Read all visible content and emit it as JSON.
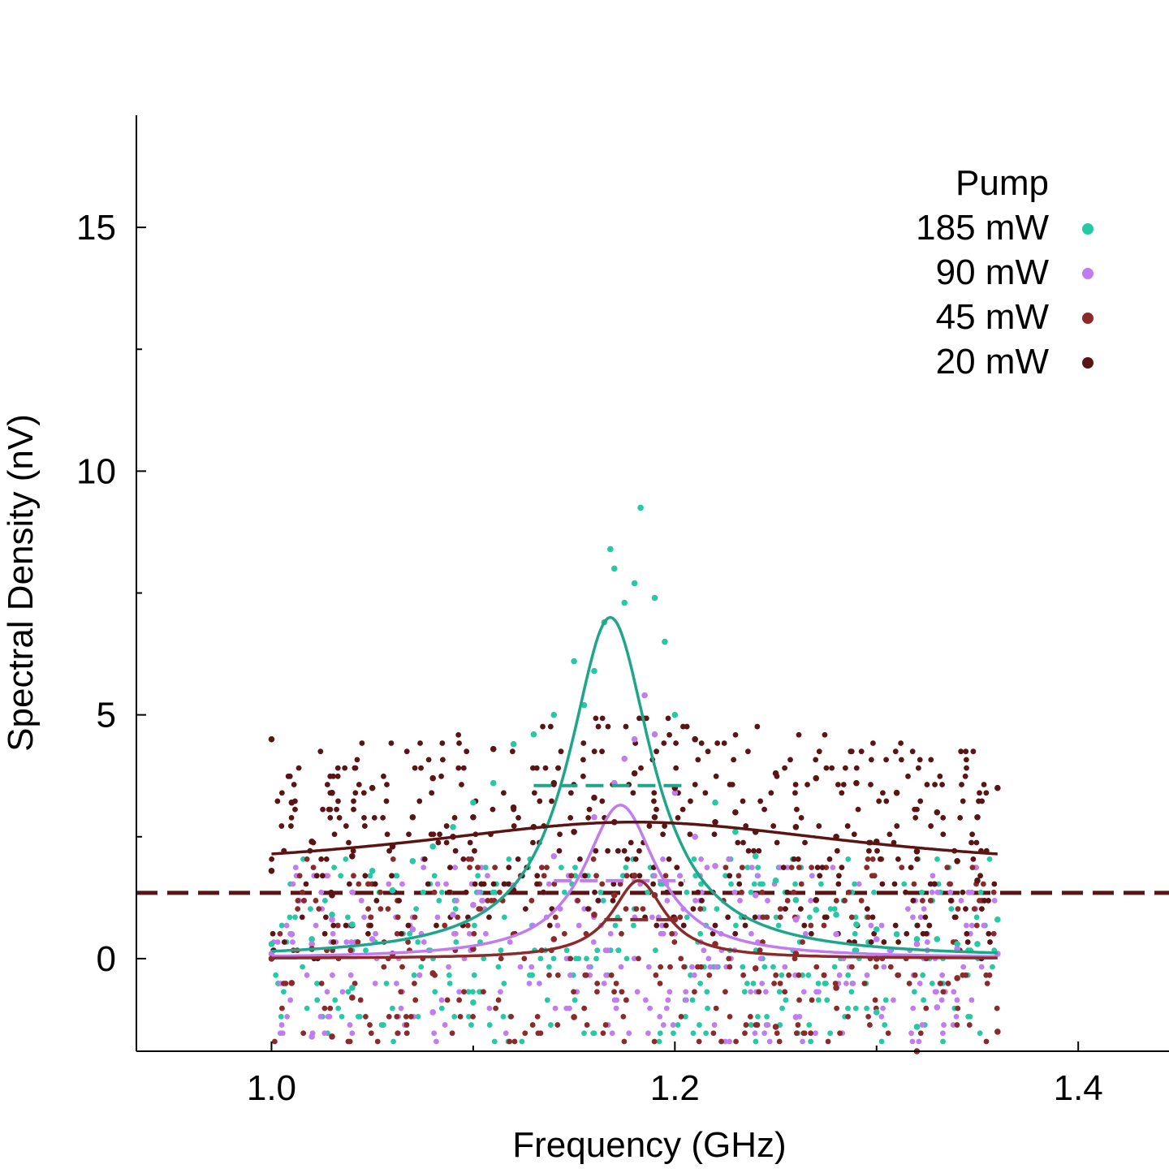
{
  "chart_data": {
    "type": "scatter",
    "xlabel": "Frequency (GHz)",
    "ylabel": "Spectral Density (nV)",
    "xlim": [
      0.933,
      1.445
    ],
    "ylim": [
      -1.9,
      17.3
    ],
    "x_ticks": [
      1.0,
      1.2,
      1.4
    ],
    "x_tick_labels": [
      "1.0",
      "1.2",
      "1.4"
    ],
    "x_minor_ticks": [
      1.1,
      1.3
    ],
    "y_ticks": [
      0,
      5,
      10,
      15
    ],
    "y_tick_labels": [
      "0",
      "5",
      "10",
      "15"
    ],
    "y_minor_ticks": [
      2.5,
      7.5,
      12.5
    ],
    "grid": false,
    "legend": {
      "title": "Pump",
      "position": "top-right"
    },
    "baseline": {
      "y": 1.35,
      "style": "dashed",
      "color": "#5a1414"
    },
    "series": [
      {
        "name": "185 mW",
        "color": "#1fa58a",
        "marker_color": "#25c9a4",
        "points": [
          [
            1.0,
            0.3
          ],
          [
            1.01,
            0.5
          ],
          [
            1.02,
            0.4
          ],
          [
            1.03,
            0.9
          ],
          [
            1.04,
            0.7
          ],
          [
            1.05,
            1.8
          ],
          [
            1.06,
            1.4
          ],
          [
            1.07,
            2.0
          ],
          [
            1.08,
            2.3
          ],
          [
            1.09,
            2.7
          ],
          [
            1.1,
            3.2
          ],
          [
            1.11,
            3.6
          ],
          [
            1.12,
            4.4
          ],
          [
            1.13,
            4.6
          ],
          [
            1.14,
            5.0
          ],
          [
            1.15,
            6.1
          ],
          [
            1.155,
            5.2
          ],
          [
            1.16,
            5.9
          ],
          [
            1.165,
            6.9
          ],
          [
            1.168,
            8.4
          ],
          [
            1.17,
            8.0
          ],
          [
            1.175,
            7.3
          ],
          [
            1.18,
            7.7
          ],
          [
            1.183,
            9.25
          ],
          [
            1.19,
            7.4
          ],
          [
            1.195,
            6.5
          ],
          [
            1.2,
            5.0
          ],
          [
            1.21,
            4.5
          ],
          [
            1.22,
            3.2
          ],
          [
            1.23,
            2.6
          ],
          [
            1.24,
            2.1
          ],
          [
            1.25,
            1.6
          ],
          [
            1.26,
            1.2
          ],
          [
            1.27,
            1.0
          ],
          [
            1.28,
            0.9
          ],
          [
            1.29,
            0.7
          ],
          [
            1.3,
            0.6
          ],
          [
            1.31,
            0.5
          ],
          [
            1.32,
            0.4
          ],
          [
            1.33,
            0.4
          ],
          [
            1.34,
            0.3
          ],
          [
            1.35,
            0.3
          ],
          [
            1.36,
            0.8
          ],
          [
            1.04,
            -0.6
          ],
          [
            1.1,
            -0.9
          ],
          [
            1.3,
            -1.1
          ],
          [
            1.32,
            -1.4
          ]
        ],
        "fit": {
          "center": 1.168,
          "amplitude": 7.0,
          "hwhm": 0.025,
          "offset": 0.0,
          "plateau_y": 3.55,
          "plateau_x": [
            1.13,
            1.205
          ]
        }
      },
      {
        "name": "90 mW",
        "color": "#c17cf0",
        "marker_color": "#c17cf0",
        "points": [
          [
            1.0,
            0.1
          ],
          [
            1.01,
            0.5
          ],
          [
            1.02,
            0.3
          ],
          [
            1.03,
            0.8
          ],
          [
            1.05,
            0.4
          ],
          [
            1.07,
            0.6
          ],
          [
            1.09,
            0.9
          ],
          [
            1.1,
            1.1
          ],
          [
            1.12,
            1.5
          ],
          [
            1.14,
            2.1
          ],
          [
            1.16,
            2.9
          ],
          [
            1.17,
            3.6
          ],
          [
            1.175,
            4.1
          ],
          [
            1.18,
            4.5
          ],
          [
            1.185,
            5.4
          ],
          [
            1.19,
            4.6
          ],
          [
            1.2,
            3.4
          ],
          [
            1.21,
            2.5
          ],
          [
            1.22,
            1.9
          ],
          [
            1.24,
            1.3
          ],
          [
            1.26,
            0.8
          ],
          [
            1.28,
            0.5
          ],
          [
            1.3,
            0.4
          ],
          [
            1.32,
            0.3
          ],
          [
            1.34,
            0.2
          ],
          [
            1.36,
            0.1
          ],
          [
            1.02,
            -1.6
          ],
          [
            1.08,
            -1.1
          ],
          [
            1.26,
            -1.2
          ],
          [
            1.33,
            -1.0
          ]
        ],
        "fit": {
          "center": 1.173,
          "amplitude": 3.15,
          "hwhm": 0.022,
          "offset": 0.0,
          "plateau_y": 1.6,
          "plateau_x": [
            1.14,
            1.205
          ]
        }
      },
      {
        "name": "45 mW",
        "color": "#8b2a2a",
        "marker_color": "#8b2a2a",
        "points": [
          [
            1.0,
            0.0
          ],
          [
            1.01,
            -0.5
          ],
          [
            1.02,
            0.2
          ],
          [
            1.04,
            -0.8
          ],
          [
            1.06,
            0.1
          ],
          [
            1.08,
            -0.3
          ],
          [
            1.1,
            0.2
          ],
          [
            1.12,
            0.5
          ],
          [
            1.14,
            0.4
          ],
          [
            1.16,
            0.9
          ],
          [
            1.17,
            1.3
          ],
          [
            1.18,
            1.7
          ],
          [
            1.19,
            1.3
          ],
          [
            1.2,
            0.8
          ],
          [
            1.22,
            0.3
          ],
          [
            1.24,
            -0.2
          ],
          [
            1.26,
            0.1
          ],
          [
            1.28,
            -0.6
          ],
          [
            1.3,
            0.0
          ],
          [
            1.32,
            -1.9
          ],
          [
            1.34,
            -0.4
          ],
          [
            1.36,
            -1.5
          ],
          [
            1.03,
            -1.6
          ],
          [
            1.15,
            -1.2
          ],
          [
            1.25,
            -1.4
          ]
        ],
        "fit": {
          "center": 1.182,
          "amplitude": 1.6,
          "hwhm": 0.016,
          "offset": 0.0,
          "plateau_y": 0.8,
          "plateau_x": [
            1.165,
            1.2
          ]
        }
      },
      {
        "name": "20 mW",
        "color": "#5a1414",
        "marker_color": "#5a1414",
        "points": [
          [
            1.0,
            4.5
          ],
          [
            1.0,
            1.8
          ],
          [
            1.01,
            3.2
          ],
          [
            1.02,
            2.4
          ],
          [
            1.03,
            3.4
          ],
          [
            1.04,
            2.1
          ],
          [
            1.05,
            3.5
          ],
          [
            1.06,
            2.3
          ],
          [
            1.07,
            2.9
          ],
          [
            1.08,
            3.7
          ],
          [
            1.09,
            2.5
          ],
          [
            1.1,
            2.9
          ],
          [
            1.11,
            4.3
          ],
          [
            1.12,
            3.1
          ],
          [
            1.13,
            2.7
          ],
          [
            1.14,
            3.6
          ],
          [
            1.15,
            2.6
          ],
          [
            1.16,
            3.3
          ],
          [
            1.17,
            2.8
          ],
          [
            1.18,
            3.8
          ],
          [
            1.19,
            2.9
          ],
          [
            1.2,
            3.5
          ],
          [
            1.21,
            4.5
          ],
          [
            1.22,
            2.8
          ],
          [
            1.23,
            3.0
          ],
          [
            1.24,
            2.6
          ],
          [
            1.25,
            3.8
          ],
          [
            1.26,
            2.7
          ],
          [
            1.27,
            3.7
          ],
          [
            1.28,
            2.5
          ],
          [
            1.29,
            3.6
          ],
          [
            1.3,
            2.4
          ],
          [
            1.31,
            3.4
          ],
          [
            1.32,
            2.2
          ],
          [
            1.33,
            3.0
          ],
          [
            1.34,
            2.0
          ],
          [
            1.35,
            2.9
          ],
          [
            1.36,
            3.5
          ],
          [
            1.03,
            1.3
          ],
          [
            1.12,
            1.4
          ],
          [
            1.27,
            1.2
          ],
          [
            1.35,
            1.6
          ]
        ],
        "fit": {
          "center": 1.18,
          "amplitude": 1.05,
          "hwhm": 0.14,
          "offset": 1.75,
          "plateau_y": null,
          "plateau_x": null
        }
      }
    ],
    "noise_cloud": {
      "x_range": [
        1.0,
        1.36
      ],
      "y_range": [
        -1.6,
        2.2
      ]
    }
  }
}
